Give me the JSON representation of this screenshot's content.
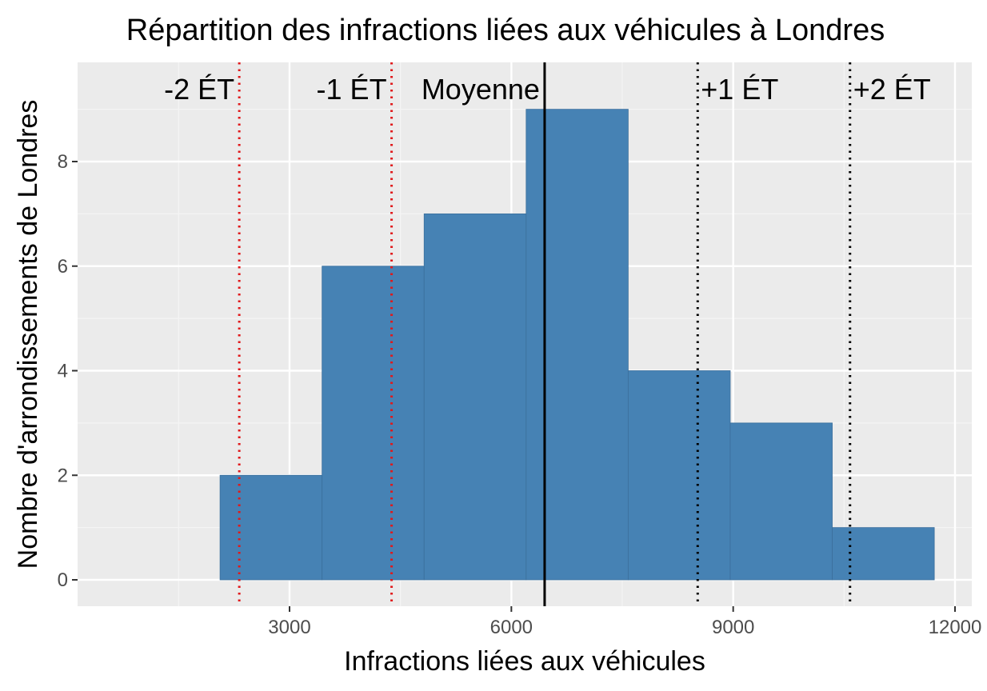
{
  "colors": {
    "panel_background": "#ebebeb",
    "grid_major": "#ffffff",
    "grid_minor": "#f4f4f4",
    "bar_fill": "#4682b4",
    "bar_stroke": "#3b6f9c",
    "mean_line": "#000000",
    "sd_low_line": "#e0191b",
    "sd_high_line": "#000000",
    "tick_text": "#4d4d4d"
  },
  "chart_data": {
    "type": "bar",
    "title": "Répartition des infractions liées aux véhicules à Londres",
    "xlabel": "Infractions liées aux véhicules",
    "ylabel": "Nombre d'arrondissements de Londres",
    "xlim": [
      0,
      12000
    ],
    "ylim": [
      -0.45,
      9.5
    ],
    "x_ticks": [
      3000,
      6000,
      9000,
      12000
    ],
    "x_tick_labels": [
      "3000",
      "6000",
      "9000",
      "12000"
    ],
    "y_ticks": [
      0,
      2,
      4,
      6,
      8
    ],
    "y_tick_labels": [
      "0",
      "2",
      "4",
      "6",
      "8"
    ],
    "grid": true,
    "bins": [
      {
        "x0": 2060,
        "x1": 3440,
        "count": 2
      },
      {
        "x0": 3440,
        "x1": 4820,
        "count": 6
      },
      {
        "x0": 4820,
        "x1": 6200,
        "count": 7
      },
      {
        "x0": 6200,
        "x1": 7580,
        "count": 9
      },
      {
        "x0": 7580,
        "x1": 8960,
        "count": 4
      },
      {
        "x0": 8960,
        "x1": 10340,
        "count": 3
      },
      {
        "x0": 10340,
        "x1": 11720,
        "count": 1
      }
    ],
    "reference_lines": [
      {
        "id": "minus2",
        "label": "-2 ÉT",
        "x": 2320,
        "style": "dotted",
        "color": "#e0191b"
      },
      {
        "id": "minus1",
        "label": "-1 ÉT",
        "x": 4380,
        "style": "dotted",
        "color": "#e0191b"
      },
      {
        "id": "mean",
        "label": "Moyenne",
        "x": 6450,
        "style": "solid",
        "color": "#000000"
      },
      {
        "id": "plus1",
        "label": "+1 ÉT",
        "x": 8520,
        "style": "dotted",
        "color": "#000000"
      },
      {
        "id": "plus2",
        "label": "+2 ÉT",
        "x": 10580,
        "style": "dotted",
        "color": "#000000"
      }
    ]
  }
}
